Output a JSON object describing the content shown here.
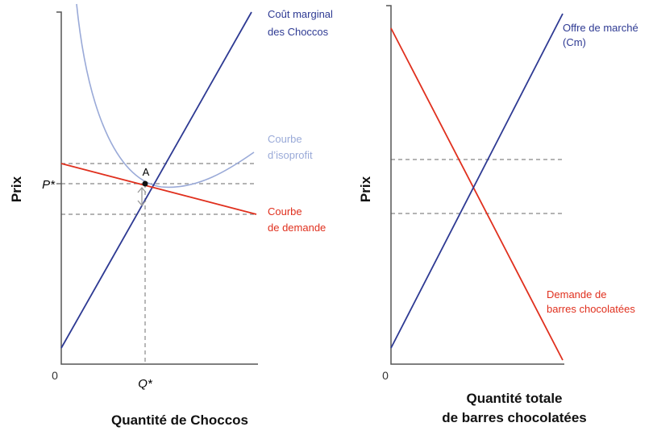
{
  "colors": {
    "marginal_cost": "#2e3a93",
    "isoprofit": "#9aaad8",
    "demand": "#e0301e",
    "axis": "#555555",
    "guide": "#888888"
  },
  "left": {
    "y_axis_label": "Prix",
    "x_axis_label": "Quantité de Choccos",
    "origin": "0",
    "p_star": "P*",
    "q_star": "Q*",
    "point_label": "A",
    "mc_label": [
      "Coût marginal",
      "des Choccos"
    ],
    "isoprofit_label": [
      "Courbe",
      "d’isoprofit"
    ],
    "demand_label": [
      "Courbe",
      "de demande"
    ]
  },
  "right": {
    "y_axis_label": "Prix",
    "x_axis_label": [
      "Quantité totale",
      "de barres chocolatées"
    ],
    "origin": "0",
    "supply_label": [
      "Offre de marché",
      "(Cm)"
    ],
    "demand_label": [
      "Demande de",
      "barres chocolatées"
    ]
  }
}
